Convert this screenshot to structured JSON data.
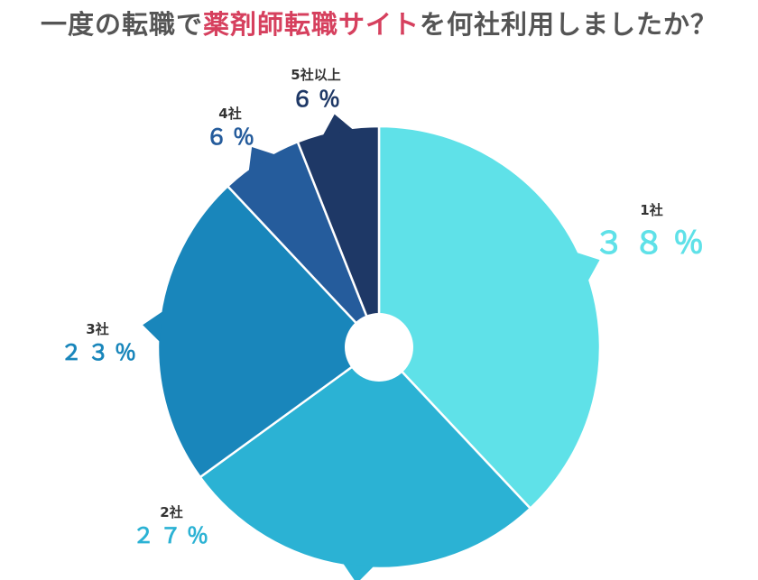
{
  "title": {
    "prefix": "一度の転職で",
    "highlight": "薬剤師転職サイト",
    "suffix": "を何社利用しましたか？",
    "highlight_color": "#d6405e"
  },
  "chart_data": {
    "type": "pie",
    "title": "一度の転職で薬剤師転職サイトを何社利用しましたか？",
    "categories": [
      "1社",
      "2社",
      "3社",
      "4社",
      "5社以上"
    ],
    "values": [
      38,
      27,
      23,
      6,
      6
    ],
    "value_labels": [
      "３８％",
      "２７％",
      "２３％",
      "６％",
      "６％"
    ],
    "colors": [
      "#5fe1e8",
      "#2bb2d4",
      "#1986bb",
      "#255c9c",
      "#1e3866"
    ],
    "donut_hole": true,
    "start_angle_deg": 0,
    "direction": "clockwise"
  }
}
